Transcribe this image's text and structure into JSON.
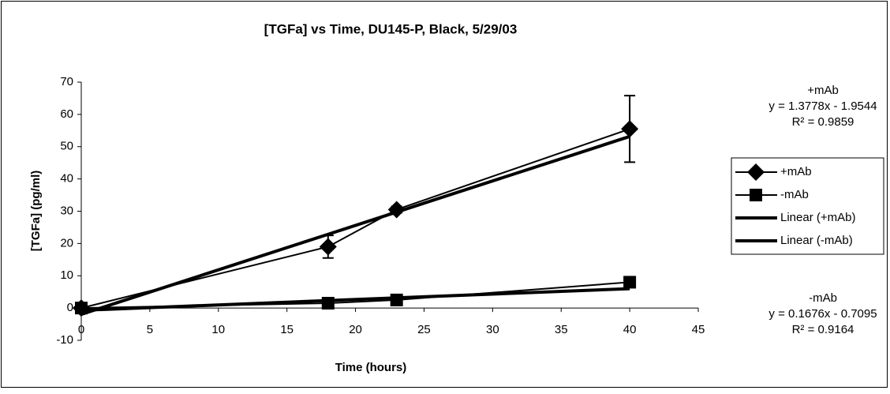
{
  "chart_data": {
    "type": "line",
    "title": "[TGFa] vs Time, DU145-P, Black, 5/29/03",
    "x_label": "Time (hours)",
    "y_label": "[TGFa] (pg/ml)",
    "x": [
      0,
      18,
      23,
      40
    ],
    "xlim": [
      0,
      45
    ],
    "xticks": [
      0,
      5,
      10,
      15,
      20,
      25,
      30,
      35,
      40,
      45
    ],
    "ylim": [
      -10,
      70
    ],
    "yticks": [
      -10,
      0,
      10,
      20,
      30,
      40,
      50,
      60,
      70
    ],
    "legend": "right",
    "series": [
      {
        "name": "+mAb",
        "color": "#000000",
        "marker": "diamond",
        "width": 2,
        "values": [
          0,
          19,
          30.5,
          55.5
        ],
        "errors": [
          1,
          3.5,
          1,
          10.3
        ]
      },
      {
        "name": "-mAb",
        "color": "#000000",
        "marker": "square",
        "width": 2,
        "values": [
          0,
          1.5,
          2.5,
          8
        ],
        "errors": [
          1,
          1.5,
          1.5,
          1
        ]
      },
      {
        "name": "Linear (+mAb)",
        "color": "#000000",
        "width": 4,
        "values": [
          -1.95,
          22.85,
          29.74,
          53.16
        ]
      },
      {
        "name": "Linear (-mAb)",
        "color": "#000000",
        "width": 4,
        "values": [
          -0.71,
          2.31,
          3.15,
          5.99
        ]
      }
    ],
    "annotations": [
      {
        "lines": [
          "+mAb",
          "y = 1.3778x - 1.9544",
          "R² = 0.9859"
        ]
      },
      {
        "lines": [
          "-mAb",
          "y = 0.1676x - 0.7095",
          "R² = 0.9164"
        ]
      }
    ]
  }
}
